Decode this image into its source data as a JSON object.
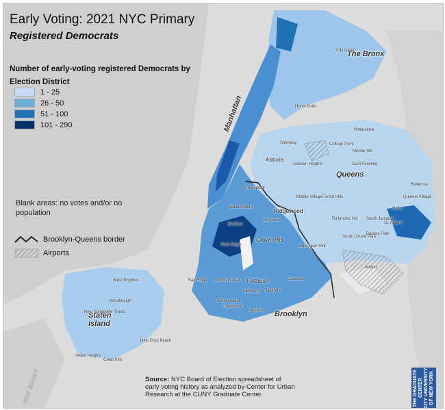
{
  "title": "Early Voting: 2021 NYC Primary",
  "subtitle": "Registered Democrats",
  "legend": {
    "title": "Number of early-voting registered Democrats by Election District",
    "classes": [
      {
        "label": "1 - 25",
        "color": "#c6dbf0"
      },
      {
        "label": "26 - 50",
        "color": "#6baed6"
      },
      {
        "label": "51 - 100",
        "color": "#2171b5"
      },
      {
        "label": "101 - 290",
        "color": "#08306b"
      }
    ],
    "blank_note": "Blank areas: no votes and/or no population",
    "border_label": "Brooklyn-Queens border",
    "airports_label": "Airports"
  },
  "source": {
    "label": "Source:",
    "text": "NYC Board of Election spreadsheet of early voting history as analyzed by Center for Urban Research at the CUNY Graduate Center."
  },
  "logo_text": "THE GRADUATE CENTER\nCITY UNIVERSITY OF NEW YORK",
  "new_jersey": "NEW JERSEY",
  "boroughs": [
    "The Bronx",
    "Manhattan",
    "Queens",
    "Brooklyn",
    "Staten Island"
  ],
  "neighborhoods": [
    "City Island",
    "Hunts Point",
    "Steinway",
    "College Point",
    "Whitestone",
    "Murray Hill",
    "East Flushing",
    "Astoria",
    "Jackson Heights",
    "Ridgewood",
    "Middle Village",
    "Forest Hills",
    "Richmond Hill",
    "South Ozone Park",
    "South Jamaica",
    "St. Albans",
    "Baisley Park",
    "Queens Village",
    "Bellerose",
    "Hollis",
    "Airport",
    "Greenpoint",
    "Williamsburg",
    "Bedford",
    "Crown Hts",
    "Bushwick",
    "East New York",
    "Park Slope",
    "Bay Ridge",
    "Borough Park",
    "Flatbush",
    "Midwood",
    "Flatlands",
    "Canarsie",
    "Gravesend",
    "Madison",
    "Bensonhurst",
    "West Brighton",
    "Westerleigh",
    "New Springville-Travis",
    "Arden Heights",
    "Great Kills",
    "New Dorp Beach"
  ]
}
